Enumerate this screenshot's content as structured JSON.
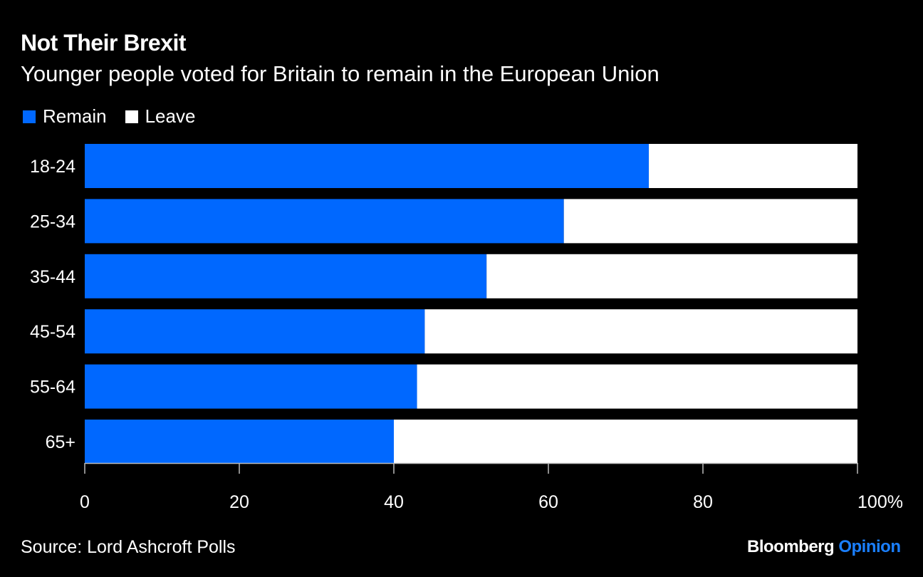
{
  "chart_data": {
    "type": "bar",
    "orientation": "horizontal",
    "stacked": true,
    "title": "Not Their Brexit",
    "subtitle": "Younger people voted for Britain to remain in the European Union",
    "categories": [
      "18-24",
      "25-34",
      "35-44",
      "45-54",
      "55-64",
      "65+"
    ],
    "series": [
      {
        "name": "Remain",
        "color": "#0068ff",
        "values": [
          73,
          62,
          52,
          44,
          43,
          40
        ]
      },
      {
        "name": "Leave",
        "color": "#ffffff",
        "values": [
          27,
          38,
          48,
          56,
          57,
          60
        ]
      }
    ],
    "xlim": [
      0,
      100
    ],
    "xticks": [
      "0",
      "20",
      "40",
      "60",
      "80",
      "100%"
    ],
    "xtick_values": [
      0,
      20,
      40,
      60,
      80,
      100
    ],
    "grid": false,
    "legend": "top-left",
    "source": "Source: Lord Ashcroft Polls"
  },
  "branding": {
    "name": "Bloomberg",
    "section": "Opinion"
  }
}
